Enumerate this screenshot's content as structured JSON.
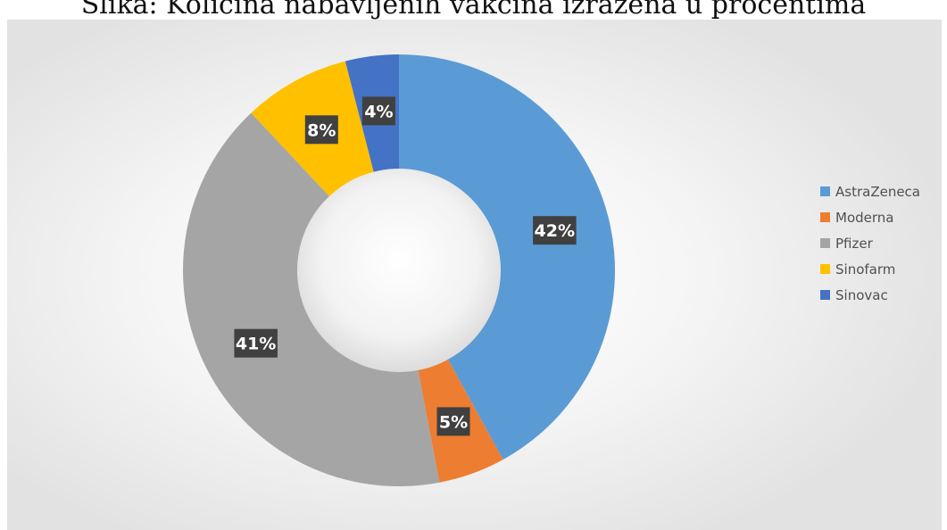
{
  "caption": "Slika: Količina nabavljenih vakcina izražena u procentima",
  "colors": {
    "AstraZeneca": "#5B9BD5",
    "Moderna": "#ED7D31",
    "Pfizer": "#A5A5A5",
    "Sinofarm": "#FFC000",
    "Sinovac": "#4472C4"
  },
  "chart_data": {
    "type": "pie",
    "variant": "doughnut",
    "title": "",
    "legend_position": "right",
    "unit": "%",
    "categories": [
      "AstraZeneca",
      "Moderna",
      "Pfizer",
      "Sinofarm",
      "Sinovac"
    ],
    "values": [
      42,
      5,
      41,
      8,
      4
    ],
    "data_labels": [
      "42%",
      "5%",
      "41%",
      "8%",
      "4%"
    ]
  }
}
